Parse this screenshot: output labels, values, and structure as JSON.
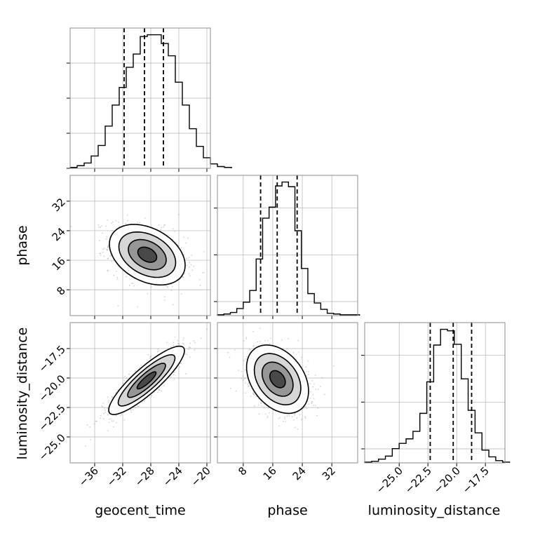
{
  "chart_data": [
    {
      "type": "histogram",
      "panel": "geocent_time marginal",
      "parameter": "geocent_time",
      "xlim": [
        -39.5,
        -19.5
      ],
      "bins": {
        "edges_start": -39.5,
        "width": 1.0,
        "counts": [
          1,
          3,
          6,
          14,
          26,
          48,
          72,
          92,
          115,
          130,
          150,
          152,
          152,
          142,
          128,
          98,
          72,
          45,
          25,
          12,
          5,
          2,
          1
        ]
      },
      "quantiles": [
        -31.8,
        -28.9,
        -26.2
      ],
      "yticks_count": 4,
      "grid": true
    },
    {
      "type": "histogram",
      "panel": "phase marginal",
      "parameter": "phase",
      "xlim": [
        1,
        39
      ],
      "bins": {
        "edges_start": 1,
        "width": 1.75,
        "counts": [
          1,
          2,
          4,
          9,
          17,
          32,
          72,
          124,
          138,
          165,
          170,
          164,
          108,
          60,
          28,
          16,
          8,
          3,
          2,
          1,
          1,
          1
        ]
      },
      "quantiles": [
        12.7,
        17.2,
        22.6
      ],
      "grid": true
    },
    {
      "type": "histogram",
      "panel": "luminosity_distance marginal",
      "parameter": "luminosity_distance",
      "xlim": [
        -28.0,
        -15.8
      ],
      "bins": {
        "edges_start": -28.0,
        "width": 0.6,
        "counts": [
          1,
          2,
          5,
          9,
          19,
          26,
          32,
          42,
          66,
          108,
          157,
          178,
          176,
          158,
          112,
          70,
          40,
          17,
          8,
          3,
          1
        ]
      },
      "quantiles": [
        -22.3,
        -20.3,
        -18.7
      ],
      "grid": true
    },
    {
      "type": "contour",
      "panel": "phase vs geocent_time",
      "x_parameter": "geocent_time",
      "y_parameter": "phase",
      "xlim": [
        -39.5,
        -19.5
      ],
      "ylim": [
        1,
        39
      ],
      "ylabel": "phase",
      "xticks": [
        -36,
        -32,
        -28,
        -24,
        -20
      ],
      "yticks": [
        8,
        16,
        24,
        32
      ],
      "center": [
        -28.5,
        17.5
      ],
      "std": [
        2.7,
        4.1
      ],
      "correlation": -0.35,
      "grid": true
    },
    {
      "type": "contour",
      "panel": "luminosity_distance vs geocent_time",
      "x_parameter": "geocent_time",
      "y_parameter": "luminosity_distance",
      "xlim": [
        -39.5,
        -19.5
      ],
      "ylim": [
        -27.2,
        -15.3
      ],
      "xlabel": "geocent_time",
      "ylabel": "luminosity_distance",
      "xticks": [
        -36,
        -32,
        -28,
        -24,
        -20
      ],
      "yticks": [
        -25.0,
        -22.5,
        -20.0,
        -17.5
      ],
      "center": [
        -28.6,
        -20.2
      ],
      "std": [
        2.7,
        1.45
      ],
      "correlation": 0.87,
      "grid": true
    },
    {
      "type": "contour",
      "panel": "luminosity_distance vs phase",
      "x_parameter": "phase",
      "y_parameter": "luminosity_distance",
      "xlim": [
        1,
        39
      ],
      "ylim": [
        -27.2,
        -15.3
      ],
      "xlabel": "phase",
      "xticks": [
        8,
        16,
        24,
        32
      ],
      "center": [
        17.3,
        -20.1
      ],
      "std": [
        4.2,
        1.45
      ],
      "correlation": -0.35,
      "grid": true
    }
  ],
  "axes": {
    "geocent_time": {
      "label": "geocent_time",
      "ticks": [
        -36,
        -32,
        -28,
        -24,
        -20
      ],
      "tick_labels": [
        "−36",
        "−32",
        "−28",
        "−24",
        "−20"
      ]
    },
    "phase": {
      "label": "phase",
      "ticks": [
        8,
        16,
        24,
        32
      ],
      "tick_labels": [
        "8",
        "16",
        "24",
        "32"
      ]
    },
    "luminosity_distance": {
      "label": "luminosity_distance",
      "ticks": [
        -25.0,
        -22.5,
        -20.0,
        -17.5
      ],
      "tick_labels": [
        "−25.0",
        "−22.5",
        "−20.0",
        "−17.5"
      ]
    }
  },
  "style": {
    "background": "#ffffff",
    "frame": "#8c8c8c",
    "grid": "#b0b0b0",
    "line": "#000000",
    "scatter": "#7a7a7a",
    "contour_levels": [
      0.5,
      1.0,
      1.5,
      2.0
    ],
    "contour_fill": [
      "#ffffff",
      "#d2d2d2",
      "#8f8f8f",
      "#404040"
    ]
  }
}
